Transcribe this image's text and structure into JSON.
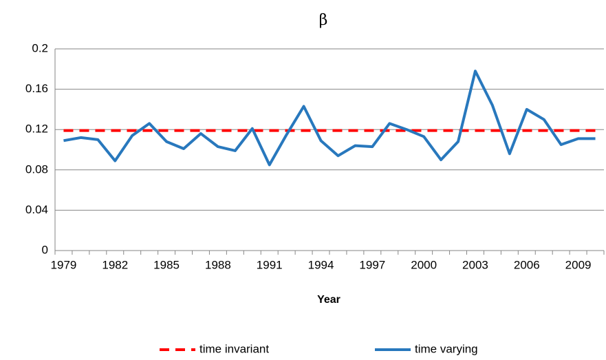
{
  "chart_data": {
    "type": "line",
    "title": "β",
    "x_label": "Year",
    "categories": [
      "1979",
      null,
      null,
      "1982",
      null,
      null,
      "1985",
      null,
      null,
      "1988",
      null,
      null,
      "1991",
      null,
      null,
      "1994",
      null,
      null,
      "1997",
      null,
      null,
      "2000",
      null,
      null,
      "2003",
      null,
      null,
      "2006",
      null,
      null,
      "2009",
      null
    ],
    "series": [
      {
        "name": "time invariant",
        "color": "#ff0000",
        "dashed": true,
        "values": [
          0.119,
          0.119,
          0.119,
          0.119,
          0.119,
          0.119,
          0.119,
          0.119,
          0.119,
          0.119,
          0.119,
          0.119,
          0.119,
          0.119,
          0.119,
          0.119,
          0.119,
          0.119,
          0.119,
          0.119,
          0.119,
          0.119,
          0.119,
          0.119,
          0.119,
          0.119,
          0.119,
          0.119,
          0.119,
          0.119,
          0.119,
          0.119
        ]
      },
      {
        "name": "time varying",
        "color": "#2878bd",
        "dashed": false,
        "values": [
          0.109,
          0.112,
          0.11,
          0.089,
          0.114,
          0.126,
          0.108,
          0.101,
          0.116,
          0.103,
          0.099,
          0.121,
          0.085,
          0.115,
          0.143,
          0.109,
          0.094,
          0.104,
          0.103,
          0.126,
          0.12,
          0.113,
          0.09,
          0.108,
          0.178,
          0.144,
          0.096,
          0.14,
          0.13,
          0.105,
          0.111,
          0.111
        ]
      }
    ],
    "ylim": [
      0,
      0.2
    ],
    "yticks": [
      0,
      0.04,
      0.08,
      0.12,
      0.16,
      0.2
    ],
    "grid": true,
    "legend": "bottom"
  }
}
